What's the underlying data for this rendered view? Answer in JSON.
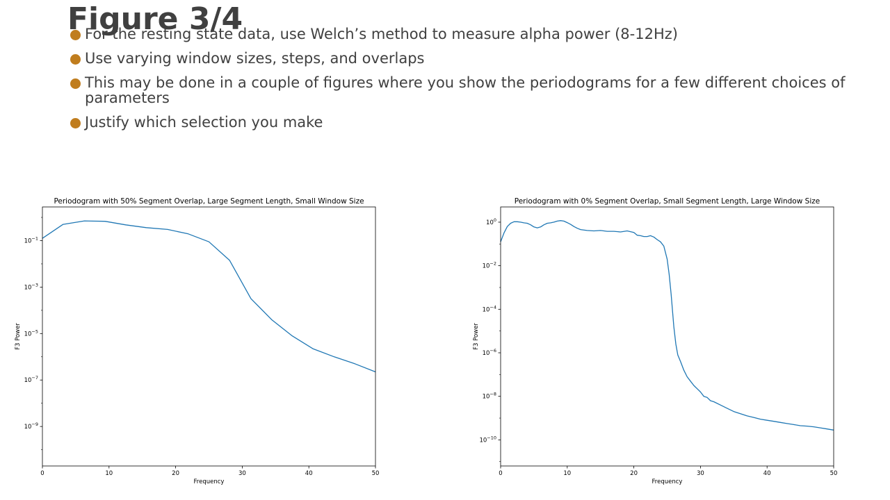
{
  "slide": {
    "title": "Figure 3/4",
    "bullet_color": "#c07d1e",
    "bullets": [
      "For the resting state data, use Welch’s method to measure alpha power (8-12Hz)",
      "Use varying window sizes, steps, and overlaps",
      "This may be done in a couple of figures where you show the periodograms for a few different choices of parameters",
      "Justify which selection you make"
    ]
  },
  "chart_data": [
    {
      "type": "line",
      "title": "Periodogram with 50% Segment Overlap, Large Segment Length, Small Window Size",
      "xlabel": "Frequency",
      "ylabel": "F3 Power",
      "xlim": [
        0,
        50
      ],
      "ylim_exp": [
        -10.7,
        0.45
      ],
      "yscale": "log",
      "xticks": [
        0,
        10,
        20,
        30,
        40,
        50
      ],
      "ytick_exps": [
        -9,
        -7,
        -5,
        -3,
        -1
      ],
      "line_color": "#1f77b4",
      "series": [
        {
          "x": [
            0,
            3.1,
            6.3,
            9.4,
            12.5,
            15.6,
            18.8,
            21.9,
            25.0,
            28.1,
            31.3,
            34.4,
            37.5,
            40.6,
            43.8,
            46.9,
            50.0
          ],
          "log10_y": [
            -0.9,
            -0.3,
            -0.15,
            -0.17,
            -0.32,
            -0.44,
            -0.52,
            -0.71,
            -1.05,
            -1.85,
            -3.5,
            -4.4,
            -5.1,
            -5.65,
            -6.0,
            -6.3,
            -6.65
          ]
        }
      ]
    },
    {
      "type": "line",
      "title": "Periodogram with 0% Segment Overlap, Small Segment Length, Large Window Size",
      "xlabel": "Frequency",
      "ylabel": "F3 Power",
      "xlim": [
        0,
        50
      ],
      "ylim_exp": [
        -11.2,
        0.7
      ],
      "yscale": "log",
      "xticks": [
        0,
        10,
        20,
        30,
        40,
        50
      ],
      "ytick_exps": [
        -10,
        -8,
        -6,
        -4,
        -2,
        0
      ],
      "line_color": "#1f77b4",
      "series": [
        {
          "x": [
            0,
            0.5,
            1,
            1.5,
            2,
            2.5,
            3,
            3.5,
            4,
            4.5,
            5,
            5.5,
            6,
            6.5,
            7,
            7.5,
            8,
            8.5,
            9,
            9.5,
            10,
            10.5,
            11,
            11.5,
            12,
            13,
            14,
            15,
            16,
            17,
            18,
            19,
            20,
            20.5,
            21,
            21.5,
            22,
            22.5,
            23,
            23.5,
            24,
            24.5,
            25,
            25.3,
            25.6,
            26,
            26.3,
            26.6,
            27,
            27.5,
            28,
            28.5,
            29,
            29.5,
            30,
            30.5,
            31,
            31.5,
            32,
            33,
            34,
            35,
            36,
            37,
            38,
            39,
            40,
            41,
            42,
            43,
            44,
            45,
            46,
            47,
            48,
            49,
            50
          ],
          "log10_y": [
            -0.9,
            -0.5,
            -0.2,
            -0.05,
            0.02,
            0.02,
            0.0,
            -0.03,
            -0.05,
            -0.12,
            -0.22,
            -0.26,
            -0.22,
            -0.12,
            -0.05,
            -0.03,
            0.0,
            0.05,
            0.07,
            0.05,
            -0.02,
            -0.1,
            -0.2,
            -0.28,
            -0.34,
            -0.38,
            -0.4,
            -0.38,
            -0.42,
            -0.42,
            -0.45,
            -0.4,
            -0.47,
            -0.6,
            -0.62,
            -0.66,
            -0.66,
            -0.62,
            -0.68,
            -0.8,
            -0.9,
            -1.1,
            -1.7,
            -2.4,
            -3.3,
            -4.8,
            -5.6,
            -6.1,
            -6.4,
            -6.8,
            -7.1,
            -7.3,
            -7.5,
            -7.65,
            -7.8,
            -8.0,
            -8.05,
            -8.2,
            -8.25,
            -8.4,
            -8.55,
            -8.7,
            -8.8,
            -8.9,
            -8.97,
            -9.05,
            -9.1,
            -9.15,
            -9.2,
            -9.25,
            -9.3,
            -9.35,
            -9.37,
            -9.4,
            -9.45,
            -9.5,
            -9.55
          ]
        }
      ]
    }
  ]
}
